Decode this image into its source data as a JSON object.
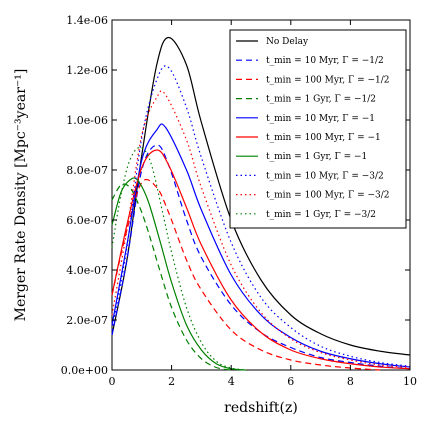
{
  "chart_data": {
    "type": "line",
    "xlabel": "redshift(z)",
    "ylabel": "Merger Rate Density [Mpc⁻³year⁻¹]",
    "xlim": [
      0,
      10
    ],
    "ylim": [
      0,
      1.4e-06
    ],
    "xticks": [
      0,
      2,
      4,
      6,
      8,
      10
    ],
    "yticks": [
      0,
      2e-07,
      4e-07,
      6e-07,
      8e-07,
      1e-06,
      1.2e-06,
      1.4e-06
    ],
    "xtick_labels": [
      "0",
      "2",
      "4",
      "6",
      "8",
      "10"
    ],
    "ytick_labels": [
      "0.0e+00",
      "2.0e-07",
      "4.0e-07",
      "6.0e-07",
      "8.0e-07",
      "1.0e-06",
      "1.2e-06",
      "1.4e-06"
    ],
    "grid": false,
    "legend_position": "top-right",
    "series": [
      {
        "name": "No Delay",
        "color": "#000000",
        "dash": "solid",
        "x": [
          0,
          0.5,
          1,
          1.5,
          1.9,
          2.5,
          3,
          4,
          5,
          6,
          7,
          8,
          9,
          10
        ],
        "y": [
          1.4e-07,
          4.4e-07,
          8.6e-07,
          1.22e-06,
          1.33e-06,
          1.22e-06,
          9.9e-07,
          6e-07,
          3.6e-07,
          2.2e-07,
          1.45e-07,
          1e-07,
          7.5e-08,
          6e-08
        ]
      },
      {
        "name": "t_min = 10 Myr, Γ = −1/2",
        "color": "#0000ff",
        "dash": "dashed",
        "x": [
          0,
          0.5,
          1,
          1.5,
          1.9,
          2.5,
          3,
          4,
          5,
          6,
          7,
          8,
          9,
          10
        ],
        "y": [
          1.4e-07,
          4.4e-07,
          8e-07,
          9e-07,
          8.2e-07,
          6e-07,
          4.5e-07,
          2.6e-07,
          1.5e-07,
          9e-08,
          5e-08,
          3e-08,
          1.5e-08,
          5e-09
        ]
      },
      {
        "name": "t_min = 100 Myr, Γ = −1/2",
        "color": "#ff0000",
        "dash": "dashed",
        "x": [
          0,
          0.5,
          1,
          1.5,
          1.9,
          2.5,
          3,
          4,
          5,
          6,
          7,
          8,
          9
        ],
        "y": [
          3e-07,
          5.6e-07,
          7.5e-07,
          7.3e-07,
          6.3e-07,
          4.4e-07,
          3.2e-07,
          1.6e-07,
          8e-08,
          4e-08,
          2e-08,
          8e-09,
          0
        ]
      },
      {
        "name": "t_min = 1 Gyr, Γ = −1/2",
        "color": "#008000",
        "dash": "dashed",
        "x": [
          0,
          0.3,
          0.6,
          0.9,
          1.2,
          1.6,
          2,
          2.5,
          3,
          3.5,
          4
        ],
        "y": [
          6.8e-07,
          7.4e-07,
          7.3e-07,
          6.6e-07,
          5.6e-07,
          4e-07,
          2.5e-07,
          1.2e-07,
          4.5e-08,
          1e-08,
          0
        ]
      },
      {
        "name": "t_min = 10 Myr, Γ = −1",
        "color": "#0000ff",
        "dash": "solid",
        "x": [
          0,
          0.5,
          1,
          1.5,
          1.8,
          2.5,
          3,
          4,
          5,
          6,
          7,
          8,
          9,
          10
        ],
        "y": [
          1.8e-07,
          5e-07,
          8.4e-07,
          9.6e-07,
          9.7e-07,
          8e-07,
          6.4e-07,
          3.8e-07,
          2.2e-07,
          1.3e-07,
          7.5e-08,
          4.5e-08,
          2.5e-08,
          1.2e-08
        ]
      },
      {
        "name": "t_min = 100 Myr, Γ = −1",
        "color": "#ff0000",
        "dash": "solid",
        "x": [
          0,
          0.5,
          1,
          1.5,
          1.9,
          2.5,
          3,
          4,
          5,
          6,
          7,
          8,
          9,
          10
        ],
        "y": [
          3e-07,
          5.8e-07,
          8.1e-07,
          8.8e-07,
          8.2e-07,
          6.5e-07,
          5e-07,
          2.8e-07,
          1.5e-07,
          8e-08,
          4.5e-08,
          2.5e-08,
          1.2e-08,
          5e-09
        ]
      },
      {
        "name": "t_min = 1 Gyr, Γ = −1",
        "color": "#008000",
        "dash": "solid",
        "x": [
          0,
          0.3,
          0.6,
          0.85,
          1.2,
          1.6,
          2,
          2.5,
          3,
          3.5,
          4,
          4.5
        ],
        "y": [
          5.8e-07,
          7.1e-07,
          7.6e-07,
          7.6e-07,
          6.8e-07,
          5.2e-07,
          3.5e-07,
          1.8e-07,
          8e-08,
          2.5e-08,
          5e-09,
          0
        ]
      },
      {
        "name": "t_min = 10 Myr, Γ = −3/2",
        "color": "#0000ff",
        "dash": "dotted",
        "x": [
          0,
          0.5,
          1,
          1.5,
          1.9,
          2.5,
          3,
          4,
          5,
          6,
          7,
          8,
          9,
          10
        ],
        "y": [
          1.6e-07,
          4.9e-07,
          9.3e-07,
          1.16e-06,
          1.21e-06,
          1.05e-06,
          8.5e-07,
          5.1e-07,
          2.9e-07,
          1.7e-07,
          9.5e-08,
          5.5e-08,
          3e-08,
          1.5e-08
        ]
      },
      {
        "name": "t_min = 100 Myr, Γ = −3/2",
        "color": "#ff0000",
        "dash": "dotted",
        "x": [
          0,
          0.5,
          1,
          1.5,
          1.8,
          2.5,
          3,
          4,
          5,
          6,
          7,
          8,
          9,
          10
        ],
        "y": [
          2.2e-07,
          5.6e-07,
          9.4e-07,
          1.09e-06,
          1.1e-06,
          9.2e-07,
          7.3e-07,
          4.2e-07,
          2.3e-07,
          1.25e-07,
          7e-08,
          4e-08,
          2e-08,
          1e-08
        ]
      },
      {
        "name": "t_min = 1 Gyr, Γ = −3/2",
        "color": "#008000",
        "dash": "dotted",
        "x": [
          0,
          0.3,
          0.6,
          0.95,
          1.3,
          1.7,
          2,
          2.5,
          3,
          3.5,
          4,
          4.5
        ],
        "y": [
          4.9e-07,
          7e-07,
          8.4e-07,
          8.9e-07,
          8.3e-07,
          6.3e-07,
          4.7e-07,
          2.5e-07,
          1.1e-07,
          3.5e-08,
          8e-09,
          0
        ]
      }
    ],
    "legend": [
      {
        "label": "No Delay",
        "color": "#000000",
        "dash": "solid"
      },
      {
        "label": "t_min = 10 Myr, Γ = −1/2",
        "color": "#0000ff",
        "dash": "dashed"
      },
      {
        "label": "t_min = 100 Myr, Γ = −1/2",
        "color": "#ff0000",
        "dash": "dashed"
      },
      {
        "label": "t_min = 1 Gyr, Γ = −1/2",
        "color": "#008000",
        "dash": "dashed"
      },
      {
        "label": "t_min = 10 Myr, Γ = −1",
        "color": "#0000ff",
        "dash": "solid"
      },
      {
        "label": "t_min = 100 Myr, Γ = −1",
        "color": "#ff0000",
        "dash": "solid"
      },
      {
        "label": "t_min = 1 Gyr, Γ = −1",
        "color": "#008000",
        "dash": "solid"
      },
      {
        "label": "t_min = 10 Myr, Γ = −3/2",
        "color": "#0000ff",
        "dash": "dotted"
      },
      {
        "label": "t_min = 100 Myr, Γ = −3/2",
        "color": "#ff0000",
        "dash": "dotted"
      },
      {
        "label": "t_min = 1 Gyr, Γ = −3/2",
        "color": "#008000",
        "dash": "dotted"
      }
    ]
  }
}
